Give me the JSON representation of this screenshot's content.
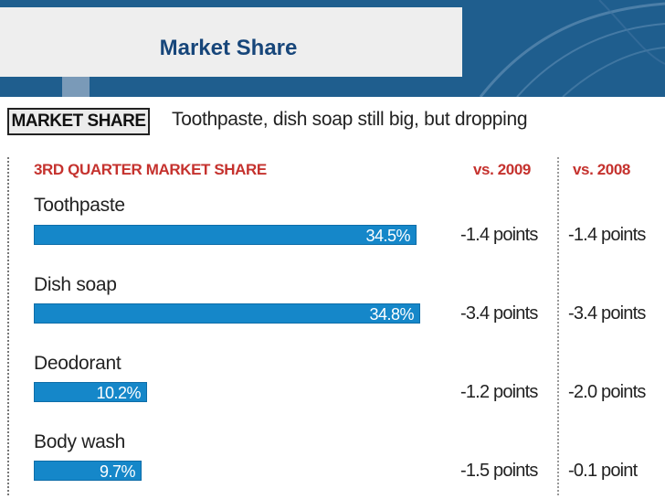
{
  "slide": {
    "title": "Market Share"
  },
  "graphic": {
    "header_tag": "MARKET SHARE",
    "headline": "Toothpaste, dish soap still big, but dropping",
    "section_label": "3RD QUARTER MARKET SHARE",
    "col_2009": "vs. 2009",
    "col_2008": "vs. 2008"
  },
  "rows": [
    {
      "category": "Toothpaste",
      "value_label": "34.5%",
      "vs2009": "-1.4 points",
      "vs2008": "-1.4 points"
    },
    {
      "category": "Dish soap",
      "value_label": "34.8%",
      "vs2009": "-3.4 points",
      "vs2008": "-3.4 points"
    },
    {
      "category": "Deodorant",
      "value_label": "10.2%",
      "vs2009": "-1.2 points",
      "vs2008": "-2.0 points"
    },
    {
      "category": "Body wash",
      "value_label": "9.7%",
      "vs2009": "-1.5 points",
      "vs2008": "-0.1 point"
    }
  ],
  "colors": {
    "bar": "#1587c9",
    "accent": "#c5322e",
    "slide_blue": "#1f5e8e"
  },
  "chart_data": {
    "type": "bar",
    "orientation": "horizontal",
    "title": "3RD QUARTER MARKET SHARE",
    "categories": [
      "Toothpaste",
      "Dish soap",
      "Deodorant",
      "Body wash"
    ],
    "values": [
      34.5,
      34.8,
      10.2,
      9.7
    ],
    "unit": "%",
    "vs_2009": [
      -1.4,
      -3.4,
      -1.2,
      -1.5
    ],
    "vs_2008": [
      -1.4,
      -3.4,
      -2.0,
      -0.1
    ],
    "xlim": [
      0,
      34.8
    ],
    "grid": false,
    "legend": "none"
  }
}
